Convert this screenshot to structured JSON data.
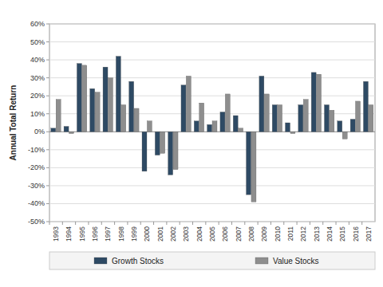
{
  "chart_data": {
    "type": "bar",
    "y_label": "Annual Total Return",
    "categories": [
      "1993",
      "1994",
      "1995",
      "1996",
      "1997",
      "1998",
      "1999",
      "2000",
      "2001",
      "2002",
      "2003",
      "2004",
      "2005",
      "2006",
      "2007",
      "2008",
      "2009",
      "2010",
      "2011",
      "2012",
      "2013",
      "2014",
      "2015",
      "2016",
      "2017"
    ],
    "series": [
      {
        "name": "Growth Stocks",
        "color": "#2e4a64",
        "values": [
          2,
          3,
          38,
          24,
          36,
          42,
          28,
          -22,
          -13,
          -24,
          26,
          6,
          4,
          11,
          9,
          -35,
          31,
          15,
          5,
          15,
          33,
          15,
          6,
          7,
          28
        ]
      },
      {
        "name": "Value Stocks",
        "color": "#8e8e8e",
        "values": [
          18,
          -1,
          37,
          22,
          30,
          15,
          13,
          6,
          -12,
          -21,
          31,
          16,
          6,
          21,
          2,
          -39,
          21,
          15,
          -1,
          18,
          32,
          12,
          -4,
          17,
          15
        ]
      }
    ],
    "ylim": [
      -50,
      60
    ],
    "yticks": [
      {
        "value": -50,
        "label": "-50%"
      },
      {
        "value": -40,
        "label": "-40%"
      },
      {
        "value": -30,
        "label": "-30%"
      },
      {
        "value": -20,
        "label": "-20%"
      },
      {
        "value": -10,
        "label": "-10%"
      },
      {
        "value": 0,
        "label": "0%"
      },
      {
        "value": 10,
        "label": "10%"
      },
      {
        "value": 20,
        "label": "20%"
      },
      {
        "value": 30,
        "label": "30%"
      },
      {
        "value": 40,
        "label": "40%"
      },
      {
        "value": 50,
        "label": "50%"
      },
      {
        "value": 60,
        "label": "60%"
      }
    ],
    "grid": true,
    "legend": "bottom"
  }
}
